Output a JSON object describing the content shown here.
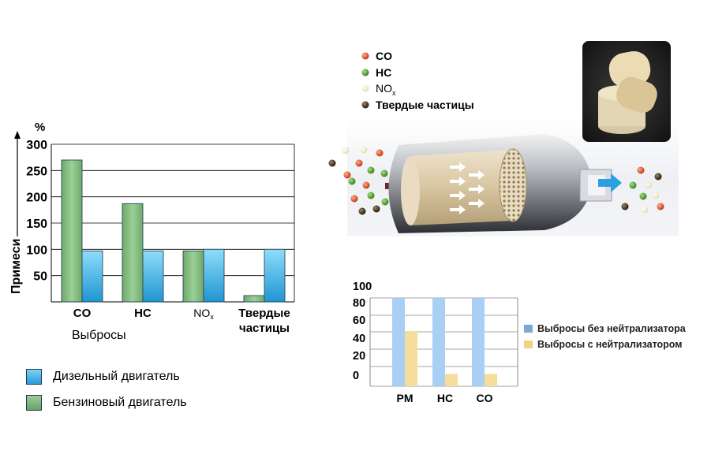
{
  "chart_data": [
    {
      "type": "bar",
      "ylabel": "Примеси",
      "y_unit": "%",
      "xlabel": "Выбросы",
      "ylim": [
        0,
        300
      ],
      "yticks": [
        50,
        100,
        150,
        200,
        250,
        300
      ],
      "categories": [
        "CO",
        "HC",
        "NOx",
        "Твердые частицы"
      ],
      "category_labels": [
        {
          "main": "CO",
          "sub": ""
        },
        {
          "main": "HC",
          "sub": ""
        },
        {
          "main": "NO",
          "sub": "x"
        },
        {
          "main": "Твердые\nчастицы",
          "sub": ""
        }
      ],
      "series": [
        {
          "name": "Бензиновый двигатель",
          "color": "#7fb27d",
          "values": [
            270,
            187,
            97,
            12
          ]
        },
        {
          "name": "Дизельный двигатель",
          "color": "#2fa9e0",
          "values": [
            97,
            97,
            100,
            100
          ]
        }
      ],
      "legend": [
        {
          "label": "Дизельный двигатель",
          "color": "#2fa9e0"
        },
        {
          "label": "Бензиновый двигатель",
          "color": "#7fb27d"
        }
      ],
      "grid": true,
      "legend_position": "bottom-left"
    },
    {
      "type": "bar",
      "ylim": [
        0,
        100
      ],
      "yticks": [
        "100",
        "80",
        "60",
        "40",
        "20",
        "0"
      ],
      "categories": [
        "PM",
        "HC",
        "CO"
      ],
      "series": [
        {
          "name": "Выбросы без нейтрализатора",
          "color": "#a9cff4",
          "values": [
            100,
            100,
            100
          ]
        },
        {
          "name": "Выбросы с нейтрализатором",
          "color": "#f6dd9c",
          "values": [
            60,
            10,
            10
          ]
        }
      ],
      "legend": [
        {
          "label": "Выбросы без нейтрализатора",
          "color": "#7aa9d6"
        },
        {
          "label": "Выбросы с нейтрализатором",
          "color": "#f2d27e"
        }
      ],
      "grid": true,
      "legend_position": "right"
    }
  ],
  "particle_legend": [
    {
      "label": "CO",
      "sub": "",
      "color": "#d9411f"
    },
    {
      "label": "HC",
      "sub": "",
      "color": "#3f9a2b"
    },
    {
      "label": "NO",
      "sub": "x",
      "color": "#f3efcc"
    },
    {
      "label": "Твердые частицы",
      "sub": "",
      "color": "#3a2a14"
    }
  ]
}
